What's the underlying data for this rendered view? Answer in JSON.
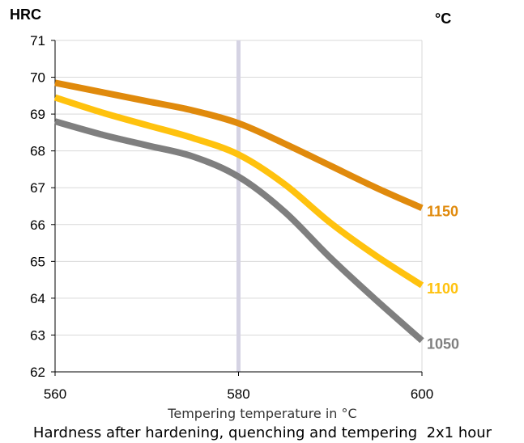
{
  "chart_data": {
    "type": "line",
    "title": "",
    "caption": "Hardness after hardening, quenching and tempering  2x1 hour",
    "xlabel": "Tempering temperature in °C",
    "ylabel": "HRC",
    "legend_title": "°C",
    "xlim": [
      560,
      600
    ],
    "ylim": [
      62,
      71
    ],
    "x_ticks": [
      "560",
      "580",
      "600"
    ],
    "y_ticks": [
      "62",
      "63",
      "64",
      "65",
      "66",
      "67",
      "68",
      "69",
      "70",
      "71"
    ],
    "grid": "horizontal",
    "reference_line_x": 580,
    "series": [
      {
        "name": "1150",
        "color": "#e08a0c",
        "x": [
          560,
          565,
          570,
          575,
          580,
          585,
          590,
          595,
          600
        ],
        "y": [
          69.85,
          69.6,
          69.35,
          69.1,
          68.75,
          68.2,
          67.6,
          67.0,
          66.45
        ]
      },
      {
        "name": "1100",
        "color": "#ffc20e",
        "x": [
          560,
          565,
          570,
          575,
          580,
          585,
          590,
          595,
          600
        ],
        "y": [
          69.45,
          69.05,
          68.7,
          68.35,
          67.9,
          67.1,
          66.05,
          65.15,
          64.35
        ]
      },
      {
        "name": "1050",
        "color": "#7f7f7f",
        "x": [
          560,
          565,
          570,
          575,
          580,
          585,
          590,
          595,
          600
        ],
        "y": [
          68.8,
          68.45,
          68.15,
          67.85,
          67.3,
          66.35,
          65.1,
          63.95,
          62.85
        ]
      }
    ]
  }
}
